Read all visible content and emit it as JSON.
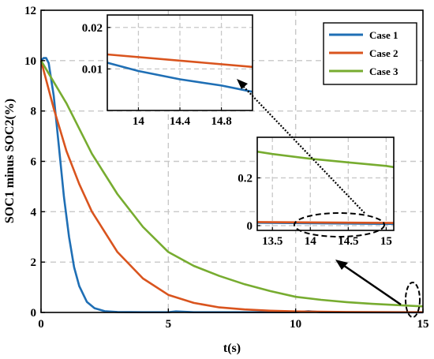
{
  "chart_data": {
    "type": "line",
    "xlabel": "t(s)",
    "ylabel": "SOC1 minus SOC2(%)",
    "xlim": [
      0,
      15
    ],
    "ylim": [
      0,
      12
    ],
    "xticks": [
      0,
      5,
      10,
      15
    ],
    "yticks": [
      0,
      2,
      4,
      6,
      8,
      10,
      12
    ],
    "grid": true,
    "legend_position": "top-right",
    "colors": {
      "Case 1": "#1f6fb5",
      "Case 2": "#d9541e",
      "Case 3": "#77ac30"
    },
    "series": [
      {
        "name": "Case 1",
        "color": "#1f6fb5",
        "x": [
          0,
          0.1,
          0.2,
          0.3,
          0.5,
          0.7,
          0.9,
          1.1,
          1.3,
          1.5,
          1.8,
          2.1,
          2.5,
          3.0,
          4.0,
          5.0,
          5.3,
          6.0,
          10.0,
          10.5,
          11.0,
          15.0
        ],
        "y": [
          10.0,
          10.1,
          10.1,
          9.9,
          8.6,
          6.6,
          4.6,
          3.0,
          1.8,
          1.05,
          0.42,
          0.17,
          0.05,
          0.02,
          0.01,
          0.01,
          0.04,
          0.01,
          0.01,
          0.05,
          0.01,
          0.0
        ]
      },
      {
        "name": "Case 2",
        "color": "#d9541e",
        "x": [
          0,
          0.5,
          1.0,
          1.5,
          2.0,
          3.0,
          4.0,
          5.0,
          6.0,
          7.0,
          8.0,
          9.0,
          10.0,
          12.0,
          15.0
        ],
        "y": [
          10.0,
          8.1,
          6.4,
          5.1,
          4.0,
          2.4,
          1.35,
          0.7,
          0.38,
          0.2,
          0.12,
          0.07,
          0.04,
          0.02,
          0.01
        ]
      },
      {
        "name": "Case 3",
        "color": "#77ac30",
        "x": [
          0,
          1.0,
          2.0,
          3.0,
          4.0,
          5.0,
          6.0,
          7.0,
          8.0,
          9.0,
          10.0,
          11.0,
          12.0,
          13.0,
          14.0,
          15.0
        ],
        "y": [
          10.0,
          8.3,
          6.3,
          4.7,
          3.4,
          2.4,
          1.85,
          1.45,
          1.12,
          0.85,
          0.62,
          0.5,
          0.41,
          0.34,
          0.29,
          0.24
        ]
      }
    ],
    "insets": [
      {
        "xlim": [
          13.3,
          15.1
        ],
        "ylim": [
          -0.02,
          0.37
        ],
        "xticks": [
          13.5,
          14,
          14.5,
          15
        ],
        "xtick_labels": [
          "13.5",
          "14",
          "14.5",
          "15"
        ],
        "yticks": [
          0,
          0.2
        ],
        "ytick_labels": [
          "0",
          "0.2"
        ],
        "series": [
          {
            "name": "Case 1",
            "x": [
              13.3,
              15.1
            ],
            "y": [
              0.012,
              0.007
            ]
          },
          {
            "name": "Case 2",
            "x": [
              13.3,
              15.1
            ],
            "y": [
              0.015,
              0.011
            ]
          },
          {
            "name": "Case 3",
            "x": [
              13.3,
              13.5,
              14.0,
              14.5,
              15.0,
              15.1
            ],
            "y": [
              0.31,
              0.3,
              0.28,
              0.265,
              0.25,
              0.245
            ]
          }
        ]
      },
      {
        "xlim": [
          13.7,
          15.1
        ],
        "ylim": [
          0.0,
          0.023
        ],
        "xticks": [
          14,
          14.4,
          14.8
        ],
        "xtick_labels": [
          "14",
          "14.4",
          "14.8"
        ],
        "yticks": [
          0.01,
          0.02
        ],
        "ytick_labels": [
          "0.01",
          "0.02"
        ],
        "series": [
          {
            "name": "Case 1",
            "x": [
              13.7,
              14.0,
              14.4,
              14.8,
              15.1
            ],
            "y": [
              0.0115,
              0.0095,
              0.0075,
              0.006,
              0.0045
            ]
          },
          {
            "name": "Case 2",
            "x": [
              13.7,
              15.1
            ],
            "y": [
              0.0135,
              0.0105
            ]
          }
        ]
      }
    ]
  }
}
